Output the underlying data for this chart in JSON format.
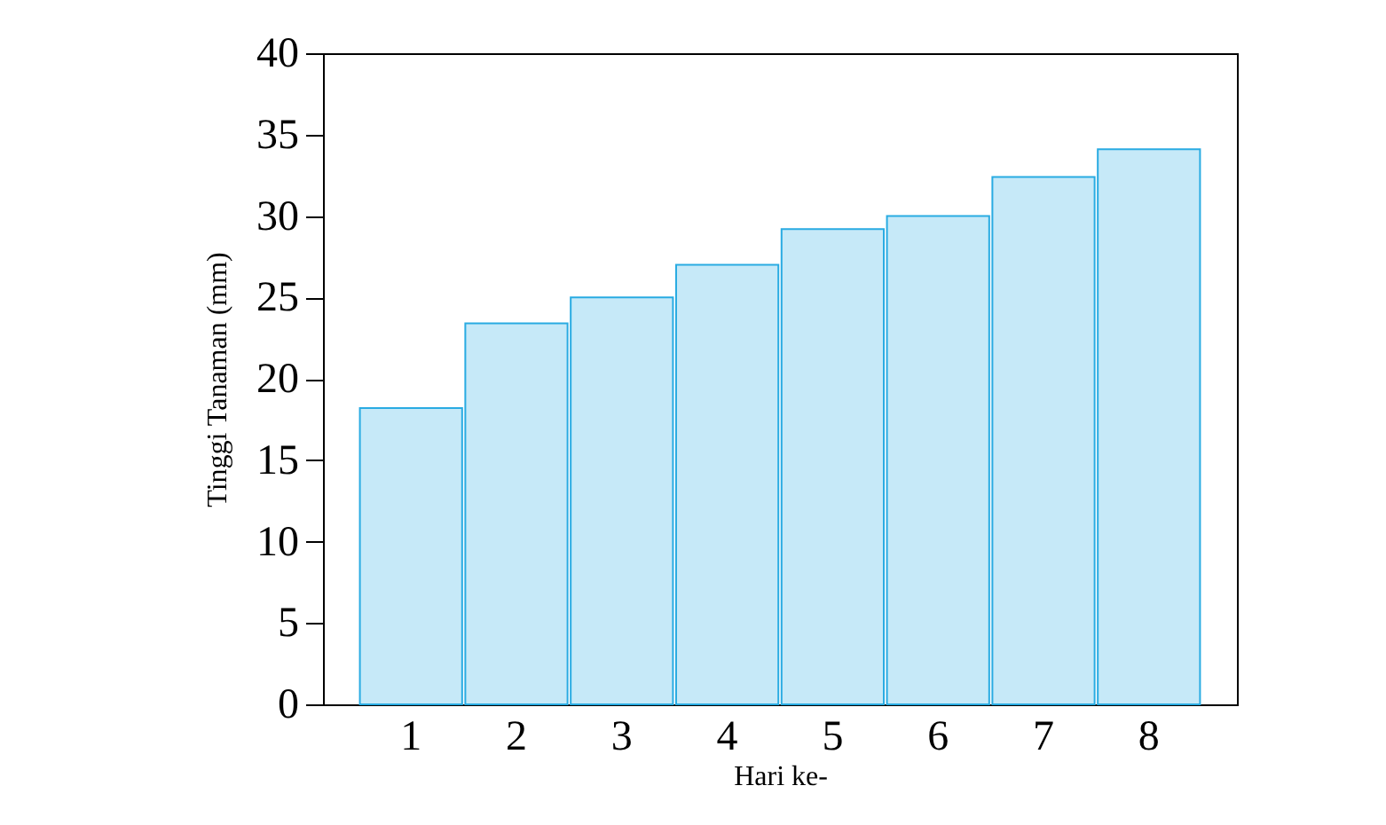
{
  "chart_data": {
    "type": "bar",
    "xlabel": "Hari ke-",
    "ylabel": "Tinggi Tanaman (mm)",
    "categories": [
      "1",
      "2",
      "3",
      "4",
      "5",
      "6",
      "7",
      "8"
    ],
    "values": [
      18.2,
      23.4,
      25,
      27,
      29.2,
      30,
      32.4,
      34.1
    ],
    "color": "#c6e9f8",
    "ylim": [
      0,
      40
    ],
    "yticks": [
      0,
      5,
      10,
      15,
      20,
      25,
      30,
      35,
      40
    ],
    "grid": false
  }
}
